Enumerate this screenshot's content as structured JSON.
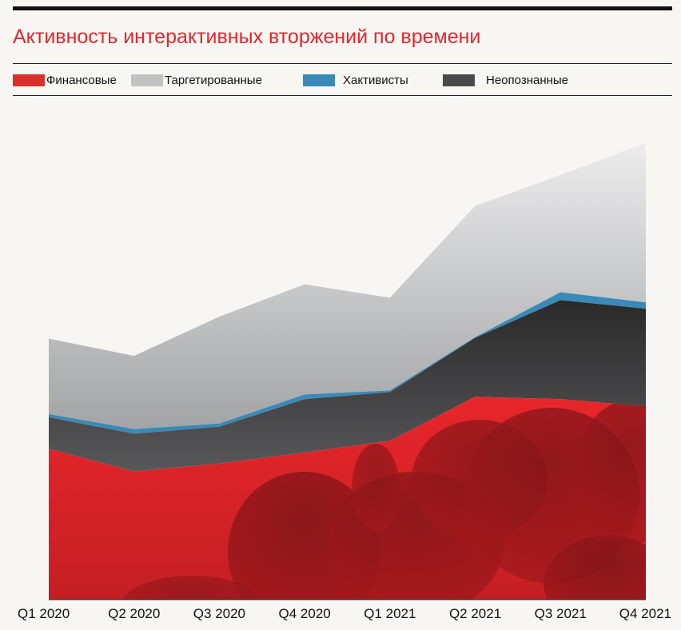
{
  "chart_data": {
    "type": "area",
    "stacked": true,
    "title": "Активность интерактивных вторжений по времени",
    "xlabel": "",
    "ylabel": "",
    "categories": [
      "Q1 2020",
      "Q2 2020",
      "Q3 2020",
      "Q4 2020",
      "Q1 2021",
      "Q2 2021",
      "Q3 2021",
      "Q4 2021"
    ],
    "series": [
      {
        "name": "Финансовые",
        "color": "#d9302b",
        "values": [
          192,
          163,
          173,
          187,
          202,
          258,
          255,
          246
        ]
      },
      {
        "name": "Неопознанные",
        "color": "#4a4a4c",
        "values": [
          40,
          48,
          47,
          68,
          62,
          75,
          126,
          124
        ]
      },
      {
        "name": "Хактивисты",
        "color": "#3a8ab8",
        "values": [
          4,
          6,
          4,
          6,
          2,
          1,
          10,
          8
        ]
      },
      {
        "name": "Таргетированные",
        "color": "#c2c2c3",
        "values": [
          96,
          93,
          136,
          140,
          118,
          167,
          149,
          203
        ]
      }
    ],
    "ylim": [
      0,
      600
    ],
    "grid": false,
    "legend_position": "top"
  }
}
